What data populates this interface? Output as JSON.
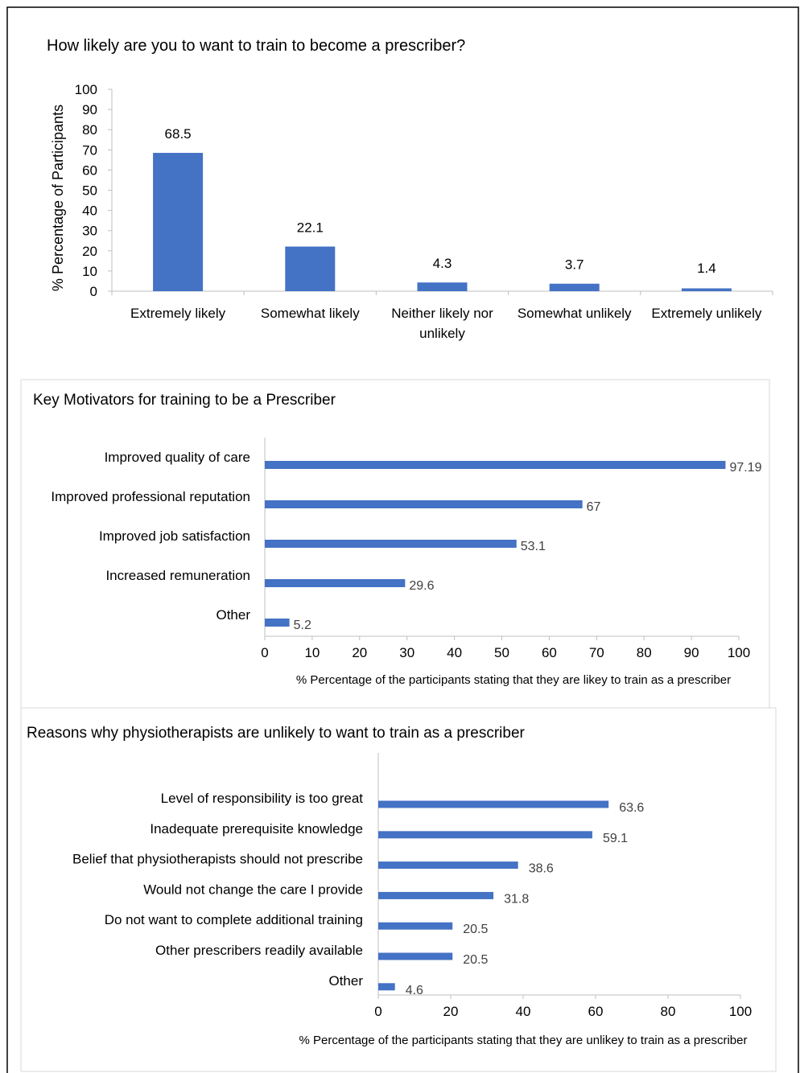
{
  "colors": {
    "bar": "#4472C4",
    "axis": "#BFBFBF",
    "text": "#000000",
    "value_text_h": "#404040",
    "frame": "#000000"
  },
  "chart_data": [
    {
      "type": "bar",
      "orientation": "vertical",
      "title": "How likely are you to want to train to become a prescriber?",
      "ylabel": "% Percentage of Participants",
      "xlabel": "",
      "ylim": [
        0,
        100
      ],
      "yticks": [
        0,
        10,
        20,
        30,
        40,
        50,
        60,
        70,
        80,
        90,
        100
      ],
      "categories": [
        [
          "Extremely likely"
        ],
        [
          "Somewhat likely"
        ],
        [
          "Neither likely nor",
          "unlikely"
        ],
        [
          "Somewhat unlikely"
        ],
        [
          "Extremely unlikely"
        ]
      ],
      "values": [
        68.5,
        22.1,
        4.3,
        3.7,
        1.4
      ],
      "labels": [
        "68.5",
        "22.1",
        "4.3",
        "3.7",
        "1.4"
      ],
      "grid": false
    },
    {
      "type": "bar",
      "orientation": "horizontal",
      "title": "Key Motivators for training to be a Prescriber",
      "xlabel": "% Percentage of the participants stating that they are likey to train as a prescriber",
      "xlim": [
        0,
        100
      ],
      "xticks": [
        0,
        10,
        20,
        30,
        40,
        50,
        60,
        70,
        80,
        90,
        100
      ],
      "categories": [
        "Improved quality of care",
        "Improved professional reputation",
        "Improved job satisfaction",
        "Increased remuneration",
        "Other"
      ],
      "values": [
        97.19,
        67,
        53.1,
        29.6,
        5.2
      ],
      "labels": [
        "97.19",
        "67",
        "53.1",
        "29.6",
        "5.2"
      ],
      "grid": false
    },
    {
      "type": "bar",
      "orientation": "horizontal",
      "title": "Reasons why physiotherapists are unlikely to want to train as a prescriber",
      "xlabel": "% Percentage of the participants stating that they are unlikey to train as a prescriber",
      "xlim": [
        0,
        100
      ],
      "xticks": [
        0,
        20,
        40,
        60,
        80,
        100
      ],
      "categories": [
        "Level of responsibility is too great",
        "Inadequate prerequisite knowledge",
        "Belief that physiotherapists should not prescribe",
        "Would not change the care I provide",
        "Do not want to complete additional training",
        "Other prescribers readily available",
        "Other"
      ],
      "values": [
        63.6,
        59.1,
        38.6,
        31.8,
        20.5,
        20.5,
        4.6
      ],
      "labels": [
        "63.6",
        "59.1",
        "38.6",
        "31.8",
        "20.5",
        "20.5",
        "4.6"
      ],
      "grid": false
    }
  ]
}
